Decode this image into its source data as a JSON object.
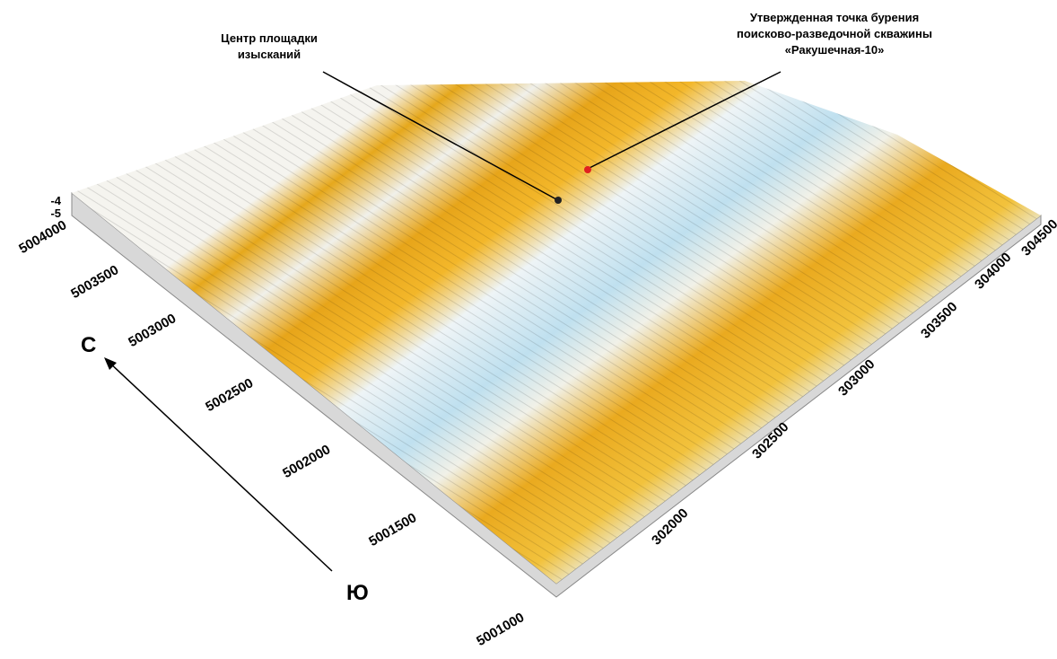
{
  "annotations": {
    "site_center": [
      "Центр площадки",
      "изысканий"
    ],
    "drilling_point": [
      "Утвержденная точка бурения",
      "поисково-разведочной скважины",
      "«Ракушечная-10»"
    ]
  },
  "north_axis": {
    "ticks": [
      5004000,
      5003500,
      5003000,
      5002500,
      5002000,
      5001500,
      5001000
    ]
  },
  "east_axis": {
    "ticks": [
      302000,
      302500,
      303000,
      303500,
      304000,
      304500
    ]
  },
  "depth_axis": {
    "ticks": [
      -4,
      -5
    ]
  },
  "compass": {
    "north": "С",
    "south": "Ю"
  }
}
